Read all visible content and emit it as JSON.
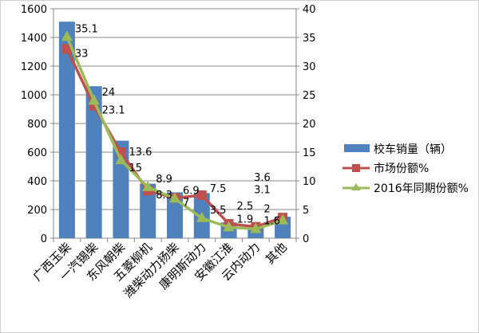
{
  "chart_data": {
    "type": "bar",
    "categories": [
      "广西玉柴",
      "一汽锡柴",
      "东风朝柴",
      "五菱柳机",
      "潍柴动力扬柴",
      "康明斯动力",
      "安徽江淮",
      "云内动力",
      "其他"
    ],
    "series": [
      {
        "name": "校车销量（辆）",
        "type": "bar",
        "axis": "left",
        "color": "#4F81BD",
        "values": [
          1510,
          1060,
          680,
          380,
          320,
          315,
          110,
          80,
          150
        ]
      },
      {
        "name": "市场份额%",
        "type": "line",
        "axis": "right",
        "color": "#C0504D",
        "marker": "square",
        "values": [
          33,
          23.1,
          15,
          8.3,
          7,
          7.5,
          2.5,
          2,
          3.6
        ]
      },
      {
        "name": "2016年同期份额%",
        "type": "line",
        "axis": "right",
        "color": "#9BBB59",
        "marker": "triangle",
        "values": [
          35.1,
          24,
          13.6,
          8.9,
          6.9,
          3.5,
          1.9,
          1.6,
          3.1
        ]
      }
    ],
    "y_left": {
      "range": [
        0,
        1600
      ],
      "ticks": [
        0,
        200,
        400,
        600,
        800,
        1000,
        1200,
        1400,
        1600
      ]
    },
    "y_right": {
      "range": [
        0,
        40
      ],
      "ticks": [
        0,
        5,
        10,
        15,
        20,
        25,
        30,
        35,
        40
      ]
    },
    "grid": true,
    "legend": "right"
  }
}
